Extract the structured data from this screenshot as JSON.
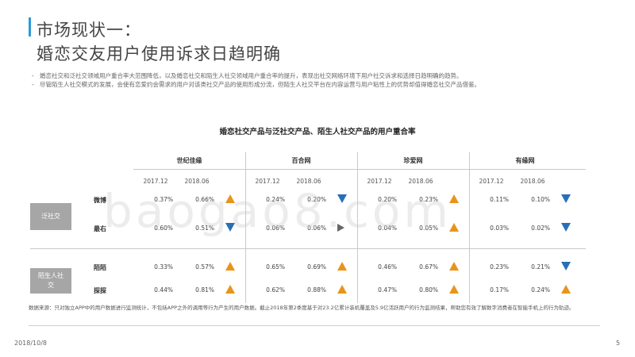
{
  "header": {
    "title_line1": "市场现状一：",
    "title_line2": "婚恋交友用户使用诉求日趋明确"
  },
  "bullets": [
    "婚恋社交和泛社交领域用户重合率大范围降低，以及婚恋社交和陌生人社交领域用户重合率的提升，表现出社交网络环境下用户社交诉求和选择日趋明确的趋势。",
    "尽管陌生人社交模式的发展，会使有恋爱约会需求的用户对该类社交产品的使用形成分流，但陌生人社交平台在内容运营与用户粘性上的优势却值得婚恋社交产品借鉴。"
  ],
  "table": {
    "title": "婚恋社交产品与泛社交产品、陌生人社交产品的用户重合率",
    "groups": [
      "世纪佳缘",
      "百合网",
      "珍爱网",
      "有缘网"
    ],
    "years": [
      "2017.12",
      "2018.06"
    ],
    "categories": [
      {
        "label": "泛社交",
        "rows": [
          "微博",
          "最右"
        ]
      },
      {
        "label": "陌生人社交",
        "rows": [
          "陌陌",
          "探探"
        ]
      }
    ],
    "rows": [
      {
        "name": "微博",
        "cells": [
          {
            "a": "0.37%",
            "b": "0.66%",
            "trend": "up"
          },
          {
            "a": "0.24%",
            "b": "0.20%",
            "trend": "down"
          },
          {
            "a": "0.20%",
            "b": "0.23%",
            "trend": "up"
          },
          {
            "a": "0.11%",
            "b": "0.10%",
            "trend": "down"
          }
        ]
      },
      {
        "name": "最右",
        "cells": [
          {
            "a": "0.60%",
            "b": "0.51%",
            "trend": "down"
          },
          {
            "a": "0.06%",
            "b": "0.06%",
            "trend": "flat"
          },
          {
            "a": "0.04%",
            "b": "0.05%",
            "trend": "up"
          },
          {
            "a": "0.03%",
            "b": "0.02%",
            "trend": "down"
          }
        ]
      },
      {
        "name": "陌陌",
        "cells": [
          {
            "a": "0.33%",
            "b": "0.57%",
            "trend": "up"
          },
          {
            "a": "0.65%",
            "b": "0.69%",
            "trend": "up"
          },
          {
            "a": "0.46%",
            "b": "0.67%",
            "trend": "up"
          },
          {
            "a": "0.23%",
            "b": "0.21%",
            "trend": "down"
          }
        ]
      },
      {
        "name": "探探",
        "cells": [
          {
            "a": "0.44%",
            "b": "0.81%",
            "trend": "up"
          },
          {
            "a": "0.62%",
            "b": "0.88%",
            "trend": "up"
          },
          {
            "a": "0.47%",
            "b": "0.80%",
            "trend": "up"
          },
          {
            "a": "0.17%",
            "b": "0.24%",
            "trend": "up"
          }
        ]
      }
    ]
  },
  "source": "数据来源：只对独立APP中的用户数据进行监测统计，不包括APP之外的调用等行为产生的用户数据。截止2018年第2季度基于对23.2亿累计装机覆盖及5.9亿活跃用户的行为监测结果，帮助您有效了解数字消费者在智能手机上的行为轨迹。",
  "footer": {
    "date": "2018/10/8",
    "page": "5"
  },
  "watermark": "baogao8.com",
  "colors": {
    "accent": "#2e9bd6",
    "up": "#e8941a",
    "down": "#2a6fb5",
    "flat": "#666666",
    "category_bg": "#a6a6a6"
  }
}
